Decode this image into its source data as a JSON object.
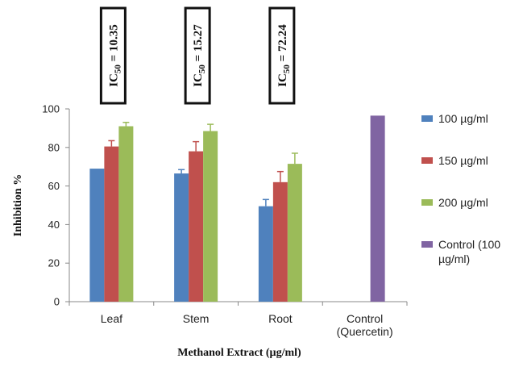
{
  "chart_data": {
    "type": "bar",
    "title": "",
    "xlabel": "Methanol Extract (µg/ml)",
    "ylabel": "Inhibition %",
    "ylim": [
      0,
      100
    ],
    "yticks": [
      0,
      20,
      40,
      60,
      80,
      100
    ],
    "categories": [
      {
        "lines": [
          "Leaf"
        ]
      },
      {
        "lines": [
          "Stem"
        ]
      },
      {
        "lines": [
          "Root"
        ]
      },
      {
        "lines": [
          "Control",
          "(Quercetin)"
        ]
      }
    ],
    "series": [
      {
        "name": "100 µg/ml",
        "color": "#4f81bd",
        "values": [
          69,
          66.5,
          49.5,
          null
        ],
        "errors": [
          0,
          2,
          3.5,
          null
        ]
      },
      {
        "name": "150 µg/ml",
        "color": "#c0504d",
        "values": [
          80.5,
          78,
          62,
          null
        ],
        "errors": [
          3,
          5,
          5.5,
          null
        ]
      },
      {
        "name": "200 µg/ml",
        "color": "#9bbb59",
        "values": [
          91,
          88.5,
          71.5,
          null
        ],
        "errors": [
          2,
          3.5,
          5.5,
          null
        ]
      },
      {
        "name": "Control (100 µg/ml)",
        "legend_lines": [
          "Control (100",
          "µg/ml)"
        ],
        "color": "#8064a2",
        "values": [
          null,
          null,
          null,
          96.5
        ],
        "errors": [
          null,
          null,
          null,
          0
        ]
      }
    ],
    "grid": false,
    "legend_position": "right",
    "annotations": [
      {
        "category": 0,
        "prefix": "IC",
        "subscript": "50",
        "suffix": " = 10.35"
      },
      {
        "category": 1,
        "prefix": "IC",
        "subscript": "50",
        "suffix": " = 15.27"
      },
      {
        "category": 2,
        "prefix": "IC",
        "subscript": "50",
        "suffix": " = 72.24"
      }
    ]
  }
}
